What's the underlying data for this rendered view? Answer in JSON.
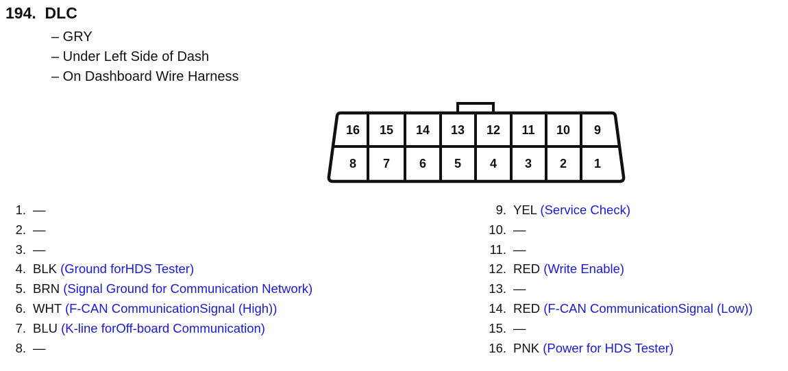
{
  "heading": {
    "number": "194.",
    "name": "DLC"
  },
  "details": [
    "– GRY",
    "– Under Left Side of Dash",
    "– On Dashboard Wire Harness"
  ],
  "connector": {
    "top_row": [
      "16",
      "15",
      "14",
      "13",
      "12",
      "11",
      "10",
      "9"
    ],
    "bottom_row": [
      "8",
      "7",
      "6",
      "5",
      "4",
      "3",
      "2",
      "1"
    ]
  },
  "pins_left": [
    {
      "num": "1.",
      "color": "—",
      "desc": ""
    },
    {
      "num": "2.",
      "color": "—",
      "desc": ""
    },
    {
      "num": "3.",
      "color": "—",
      "desc": ""
    },
    {
      "num": "4.",
      "color": "BLK",
      "desc": "(Ground forHDS Tester)"
    },
    {
      "num": "5.",
      "color": "BRN",
      "desc": "(Signal Ground for Communication Network)"
    },
    {
      "num": "6.",
      "color": "WHT",
      "desc": "(F-CAN CommunicationSignal (High))"
    },
    {
      "num": "7.",
      "color": "BLU",
      "desc": "(K-line forOff-board Communication)"
    },
    {
      "num": "8.",
      "color": "—",
      "desc": ""
    }
  ],
  "pins_right": [
    {
      "num": "9.",
      "color": "YEL",
      "desc": "(Service Check)"
    },
    {
      "num": "10.",
      "color": "—",
      "desc": ""
    },
    {
      "num": "11.",
      "color": "—",
      "desc": ""
    },
    {
      "num": "12.",
      "color": "RED",
      "desc": "(Write Enable)"
    },
    {
      "num": "13.",
      "color": "—",
      "desc": ""
    },
    {
      "num": "14.",
      "color": "RED",
      "desc": "(F-CAN CommunicationSignal (Low))"
    },
    {
      "num": "15.",
      "color": "—",
      "desc": ""
    },
    {
      "num": "16.",
      "color": "PNK",
      "desc": "(Power for HDS Tester)"
    }
  ],
  "colors": {
    "description_text": "#1a1ad0",
    "body_text": "#111111"
  }
}
